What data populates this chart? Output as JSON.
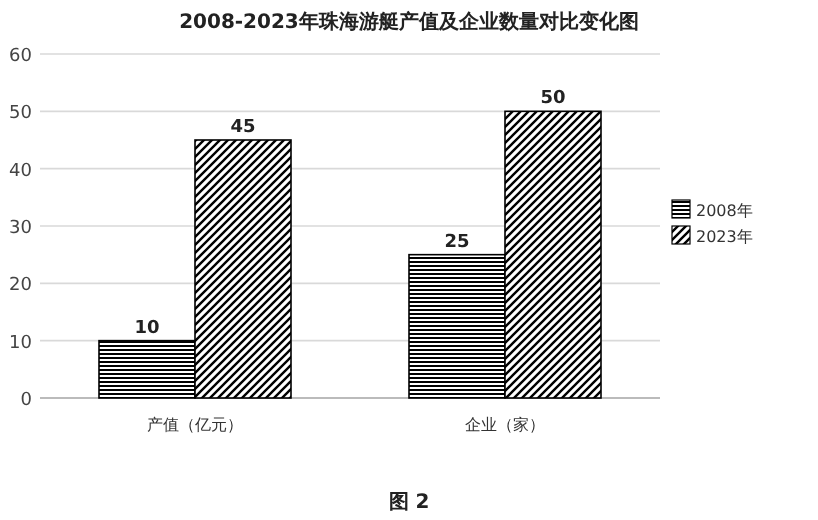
{
  "chart_data": {
    "type": "bar",
    "title": "2008-2023年珠海游艇产值及企业数量对比变化图",
    "categories": [
      "产值（亿元）",
      "企业（家）"
    ],
    "series": [
      {
        "name": "2008年",
        "color": "#000000",
        "values": [
          10,
          25
        ]
      },
      {
        "name": "2023年",
        "color": "#000000",
        "values": [
          45,
          50
        ]
      }
    ],
    "ylim": [
      0,
      60
    ],
    "yticks": [
      0,
      10,
      20,
      30,
      40,
      50,
      60
    ],
    "grid": "y",
    "legend": "right",
    "data_labels": true,
    "annotations": [
      "图 2"
    ]
  }
}
